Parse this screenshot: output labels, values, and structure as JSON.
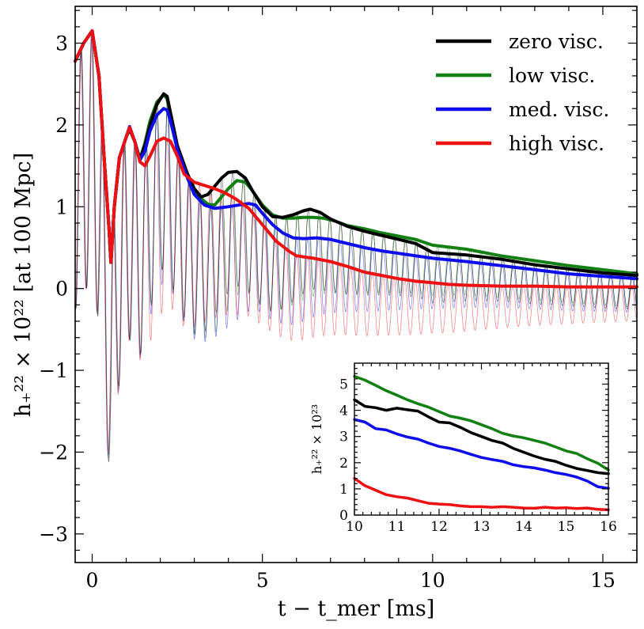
{
  "chart_data": [
    {
      "type": "line",
      "xlabel": "t − t_mer [ms]",
      "ylabel": "h₊²² × 10²² [at 100 Mpc]",
      "xlim": [
        -0.5,
        16
      ],
      "ylim": [
        -3.35,
        3.45
      ],
      "x_ticks": [
        0,
        5,
        10,
        15
      ],
      "x_tick_labels": [
        "0",
        "5",
        "10",
        "15"
      ],
      "y_ticks": [
        -3,
        -2,
        -1,
        0,
        1,
        2,
        3
      ],
      "y_tick_labels": [
        "−3",
        "−2",
        "−1",
        "0",
        "1",
        "2",
        "3"
      ],
      "legend_position": "top-right",
      "series": [
        {
          "name": "zero visc.",
          "color": "#000000",
          "x": [
            -0.5,
            -0.25,
            0,
            0.2,
            0.35,
            0.5,
            0.55,
            0.65,
            0.8,
            1.0,
            1.1,
            1.25,
            1.4,
            1.55,
            1.7,
            1.9,
            2.1,
            2.2,
            2.3,
            2.5,
            2.8,
            3.0,
            3.2,
            3.4,
            3.6,
            3.8,
            4.0,
            4.25,
            4.5,
            4.7,
            5.0,
            5.3,
            5.6,
            5.9,
            6.2,
            6.4,
            6.7,
            7.0,
            7.5,
            8.0,
            8.5,
            9.0,
            9.5,
            10,
            11,
            12,
            13,
            14,
            15,
            16
          ],
          "y": [
            2.78,
            3.0,
            3.15,
            2.6,
            1.6,
            0.7,
            0.32,
            1.0,
            1.6,
            1.85,
            1.95,
            1.8,
            1.58,
            1.75,
            2.0,
            2.25,
            2.38,
            2.35,
            2.15,
            1.75,
            1.4,
            1.22,
            1.12,
            1.15,
            1.25,
            1.35,
            1.42,
            1.43,
            1.35,
            1.2,
            1.0,
            0.88,
            0.87,
            0.9,
            0.95,
            0.97,
            0.93,
            0.85,
            0.76,
            0.7,
            0.65,
            0.6,
            0.55,
            0.44,
            0.41,
            0.36,
            0.29,
            0.24,
            0.19,
            0.16
          ]
        },
        {
          "name": "low visc.",
          "color": "#138013",
          "x": [
            -0.5,
            -0.25,
            0,
            0.2,
            0.35,
            0.5,
            0.55,
            0.65,
            0.8,
            1.0,
            1.1,
            1.25,
            1.4,
            1.55,
            1.7,
            1.9,
            2.1,
            2.2,
            2.3,
            2.5,
            2.8,
            3.0,
            3.2,
            3.4,
            3.6,
            3.8,
            4.0,
            4.25,
            4.5,
            4.7,
            5.0,
            5.3,
            5.6,
            5.9,
            6.2,
            6.5,
            6.8,
            7.1,
            7.5,
            8.0,
            8.5,
            9.0,
            9.5,
            10,
            11,
            12,
            13,
            14,
            15,
            16
          ],
          "y": [
            2.78,
            3.0,
            3.15,
            2.6,
            1.6,
            0.7,
            0.32,
            1.0,
            1.6,
            1.85,
            1.95,
            1.8,
            1.58,
            1.78,
            2.05,
            2.28,
            2.37,
            2.32,
            2.1,
            1.7,
            1.35,
            1.2,
            1.1,
            1.03,
            1.02,
            1.12,
            1.22,
            1.32,
            1.3,
            1.2,
            1.02,
            0.9,
            0.86,
            0.86,
            0.87,
            0.87,
            0.86,
            0.83,
            0.77,
            0.73,
            0.68,
            0.64,
            0.6,
            0.53,
            0.48,
            0.4,
            0.34,
            0.28,
            0.23,
            0.18
          ]
        },
        {
          "name": "med. visc.",
          "color": "#0d0dee",
          "x": [
            -0.5,
            -0.25,
            0,
            0.2,
            0.35,
            0.5,
            0.55,
            0.65,
            0.8,
            1.0,
            1.1,
            1.25,
            1.4,
            1.55,
            1.7,
            1.9,
            2.1,
            2.2,
            2.3,
            2.5,
            2.8,
            3.0,
            3.3,
            3.6,
            4.0,
            4.3,
            4.6,
            4.8,
            5.0,
            5.3,
            5.6,
            5.9,
            6.2,
            6.6,
            7.0,
            7.5,
            8.0,
            8.5,
            9.0,
            9.5,
            10,
            11,
            12,
            13,
            14,
            15,
            16
          ],
          "y": [
            2.78,
            3.0,
            3.15,
            2.6,
            1.6,
            0.7,
            0.32,
            1.0,
            1.6,
            1.85,
            1.98,
            1.8,
            1.57,
            1.68,
            1.93,
            2.12,
            2.2,
            2.18,
            2.05,
            1.7,
            1.35,
            1.15,
            1.02,
            0.98,
            1.0,
            1.02,
            1.04,
            1.02,
            0.92,
            0.78,
            0.68,
            0.62,
            0.61,
            0.62,
            0.6,
            0.55,
            0.5,
            0.46,
            0.43,
            0.4,
            0.37,
            0.33,
            0.28,
            0.23,
            0.18,
            0.15,
            0.12
          ]
        },
        {
          "name": "high visc.",
          "color": "#ee1111",
          "x": [
            -0.5,
            -0.25,
            0,
            0.2,
            0.35,
            0.5,
            0.55,
            0.65,
            0.8,
            1.0,
            1.1,
            1.25,
            1.4,
            1.55,
            1.7,
            1.9,
            2.1,
            2.3,
            2.5,
            2.7,
            3.0,
            3.3,
            3.6,
            3.9,
            4.2,
            4.6,
            5.0,
            5.4,
            5.8,
            6.0,
            6.5,
            7.0,
            7.5,
            8.0,
            8.5,
            9.0,
            9.5,
            10,
            10.5,
            11,
            12,
            13,
            14,
            15,
            16
          ],
          "y": [
            2.78,
            3.0,
            3.15,
            2.6,
            1.6,
            0.7,
            0.32,
            1.0,
            1.6,
            1.85,
            1.97,
            1.8,
            1.55,
            1.5,
            1.62,
            1.8,
            1.84,
            1.8,
            1.62,
            1.4,
            1.3,
            1.26,
            1.22,
            1.17,
            1.1,
            0.98,
            0.78,
            0.58,
            0.45,
            0.4,
            0.37,
            0.33,
            0.27,
            0.2,
            0.16,
            0.12,
            0.09,
            0.07,
            0.05,
            0.04,
            0.03,
            0.03,
            0.02,
            0.02,
            0.02
          ]
        }
      ]
    },
    {
      "type": "line",
      "xlabel": "",
      "ylabel": "h₊²² × 10²³",
      "xlim": [
        10,
        16
      ],
      "ylim": [
        0,
        5.8
      ],
      "x_ticks": [
        10,
        11,
        12,
        13,
        14,
        15,
        16
      ],
      "x_tick_labels": [
        "10",
        "11",
        "12",
        "13",
        "14",
        "15",
        "16"
      ],
      "y_ticks": [
        0,
        1,
        2,
        3,
        4,
        5
      ],
      "y_tick_labels": [
        "0",
        "1",
        "2",
        "3",
        "4",
        "5"
      ],
      "series": [
        {
          "name": "zero visc.",
          "color": "#000000",
          "x": [
            10,
            10.25,
            10.5,
            10.75,
            11,
            11.25,
            11.5,
            11.75,
            12,
            12.25,
            12.5,
            12.75,
            13,
            13.25,
            13.5,
            13.75,
            14,
            14.25,
            14.5,
            14.75,
            15,
            15.25,
            15.5,
            15.75,
            16
          ],
          "y": [
            4.4,
            4.15,
            4.1,
            4.0,
            4.08,
            4.02,
            3.97,
            3.75,
            3.55,
            3.52,
            3.35,
            3.15,
            3.0,
            2.85,
            2.75,
            2.55,
            2.4,
            2.25,
            2.13,
            2.05,
            1.9,
            1.78,
            1.7,
            1.62,
            1.58
          ]
        },
        {
          "name": "low visc.",
          "color": "#138013",
          "x": [
            10,
            10.25,
            10.5,
            10.75,
            11,
            11.25,
            11.5,
            11.75,
            12,
            12.25,
            12.5,
            12.75,
            13,
            13.25,
            13.5,
            13.75,
            14,
            14.25,
            14.5,
            14.75,
            15,
            15.25,
            15.5,
            15.75,
            16
          ],
          "y": [
            5.3,
            5.15,
            4.95,
            4.75,
            4.58,
            4.4,
            4.25,
            4.12,
            3.95,
            3.78,
            3.7,
            3.6,
            3.45,
            3.3,
            3.12,
            3.02,
            2.95,
            2.85,
            2.75,
            2.6,
            2.45,
            2.35,
            2.15,
            1.98,
            1.72
          ]
        },
        {
          "name": "med. visc.",
          "color": "#0d0dee",
          "x": [
            10,
            10.25,
            10.5,
            10.75,
            11,
            11.25,
            11.5,
            11.75,
            12,
            12.25,
            12.5,
            12.75,
            13,
            13.25,
            13.5,
            13.75,
            14,
            14.25,
            14.5,
            14.75,
            15,
            15.25,
            15.5,
            15.75,
            16
          ],
          "y": [
            3.65,
            3.55,
            3.3,
            3.25,
            3.1,
            2.98,
            2.9,
            2.75,
            2.62,
            2.55,
            2.45,
            2.32,
            2.2,
            2.12,
            2.05,
            1.92,
            1.85,
            1.8,
            1.72,
            1.62,
            1.55,
            1.45,
            1.3,
            1.08,
            1.02
          ]
        },
        {
          "name": "high visc.",
          "color": "#ee1111",
          "x": [
            10,
            10.25,
            10.5,
            10.75,
            11,
            11.25,
            11.5,
            11.75,
            12,
            12.25,
            12.5,
            12.75,
            13,
            13.25,
            13.5,
            13.75,
            14,
            14.25,
            14.5,
            14.75,
            15,
            15.25,
            15.5,
            15.75,
            16
          ],
          "y": [
            1.4,
            1.12,
            0.95,
            0.78,
            0.7,
            0.65,
            0.55,
            0.45,
            0.42,
            0.4,
            0.35,
            0.32,
            0.32,
            0.3,
            0.32,
            0.3,
            0.27,
            0.26,
            0.3,
            0.27,
            0.28,
            0.25,
            0.27,
            0.22,
            0.2
          ]
        }
      ]
    }
  ]
}
